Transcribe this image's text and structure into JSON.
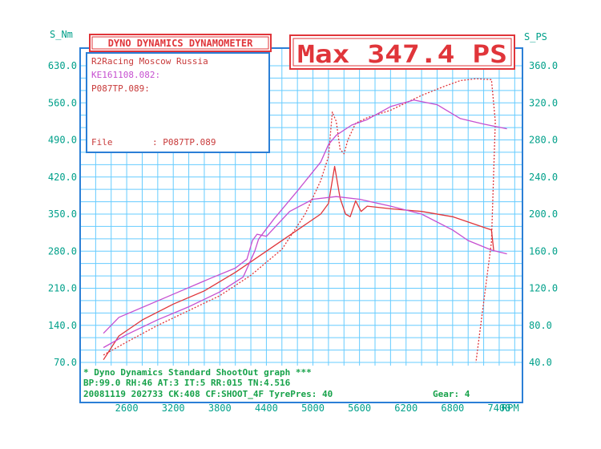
{
  "header": {
    "title": "DYNO DYNAMICS DYNAMOMETER",
    "max_label": "Max 347.4 PS"
  },
  "info_box": {
    "line1": "R2Racing Moscow Russia",
    "line2": "KE161108.082:",
    "line3": "P087TP.089:",
    "file_label": "File",
    "file_value": ": P087TP.089"
  },
  "footer": {
    "line1": "* Dyno Dynamics Standard ShootOut graph ***",
    "line2": "BP:99.0  RH:46 AT:3  IT:5     RR:015 TN:4.516",
    "line3_left": "20081119 202733 CK:408 CF:SHOOT_4F TyrePres: 40",
    "line3_right": "Gear: 4"
  },
  "colors": {
    "grid": "#66ccff",
    "axis_text": "#00a08a",
    "run1": "#e0353a",
    "run2": "#c64fd0",
    "header_red": "#e0353a",
    "box_blue": "#2b7fd6"
  },
  "chart_data": {
    "type": "line",
    "xlabel": "RPM",
    "ylabel_left": "S_Nm",
    "ylabel_right": "S_PS",
    "xlim": [
      2000,
      7700
    ],
    "ylim_left": [
      70,
      630
    ],
    "ylim_right": [
      40,
      360
    ],
    "x_ticks": [
      2600,
      3200,
      3800,
      4400,
      5000,
      5600,
      6200,
      6800,
      7400
    ],
    "x_tick_labels": [
      "2600",
      "3200",
      "3800",
      "4400",
      "5000",
      "5600",
      "6200",
      "6800",
      "7400"
    ],
    "y_left_ticks": [
      70,
      140,
      210,
      280,
      350,
      420,
      490,
      560,
      630
    ],
    "y_left_tick_labels": [
      "70.0",
      "140.0",
      "210.0",
      "280.0",
      "350.0",
      "420.0",
      "490.0",
      "560.0",
      "630.0"
    ],
    "y_right_ticks": [
      40,
      80,
      120,
      160,
      200,
      240,
      280,
      320,
      360
    ],
    "y_right_tick_labels": [
      "40.0",
      "80.0",
      "120.0",
      "160.0",
      "200.0",
      "240.0",
      "280.0",
      "320.0",
      "360.0"
    ],
    "grid": true,
    "series": [
      {
        "axis": "left",
        "style": "solid",
        "color": "#e0353a",
        "points": [
          [
            2300,
            75
          ],
          [
            2500,
            120
          ],
          [
            2800,
            150
          ],
          [
            3200,
            180
          ],
          [
            3600,
            205
          ],
          [
            4000,
            240
          ],
          [
            4400,
            280
          ],
          [
            4800,
            320
          ],
          [
            5100,
            350
          ],
          [
            5200,
            370
          ],
          [
            5280,
            440
          ],
          [
            5350,
            380
          ],
          [
            5420,
            350
          ],
          [
            5480,
            345
          ],
          [
            5550,
            375
          ],
          [
            5620,
            355
          ],
          [
            5700,
            365
          ],
          [
            6000,
            360
          ],
          [
            6400,
            355
          ],
          [
            6800,
            345
          ],
          [
            7000,
            335
          ],
          [
            7200,
            325
          ],
          [
            7300,
            320
          ],
          [
            7330,
            280
          ]
        ]
      },
      {
        "axis": "left",
        "style": "solid",
        "color": "#c64fd0",
        "points": [
          [
            2300,
            125
          ],
          [
            2500,
            155
          ],
          [
            2900,
            180
          ],
          [
            3300,
            205
          ],
          [
            3700,
            230
          ],
          [
            4000,
            248
          ],
          [
            4150,
            265
          ],
          [
            4220,
            300
          ],
          [
            4280,
            312
          ],
          [
            4400,
            308
          ],
          [
            4700,
            355
          ],
          [
            5000,
            378
          ],
          [
            5300,
            383
          ],
          [
            5600,
            378
          ],
          [
            6000,
            365
          ],
          [
            6400,
            350
          ],
          [
            6800,
            320
          ],
          [
            7000,
            300
          ],
          [
            7300,
            282
          ],
          [
            7500,
            275
          ]
        ]
      },
      {
        "axis": "right",
        "style": "dashed",
        "color": "#e0353a",
        "points": [
          [
            2300,
            48
          ],
          [
            2600,
            62
          ],
          [
            3000,
            80
          ],
          [
            3400,
            96
          ],
          [
            3800,
            112
          ],
          [
            4200,
            134
          ],
          [
            4600,
            162
          ],
          [
            4900,
            200
          ],
          [
            5100,
            236
          ],
          [
            5200,
            262
          ],
          [
            5250,
            310
          ],
          [
            5300,
            300
          ],
          [
            5350,
            270
          ],
          [
            5400,
            265
          ],
          [
            5450,
            280
          ],
          [
            5550,
            298
          ],
          [
            5700,
            304
          ],
          [
            6000,
            312
          ],
          [
            6400,
            328
          ],
          [
            6700,
            338
          ],
          [
            6900,
            344
          ],
          [
            7100,
            346
          ],
          [
            7300,
            345
          ],
          [
            7350,
            300
          ],
          [
            7300,
            170
          ],
          [
            7100,
            40
          ]
        ]
      },
      {
        "axis": "right",
        "style": "solid",
        "color": "#c64fd0",
        "points": [
          [
            2300,
            56
          ],
          [
            2600,
            70
          ],
          [
            3000,
            86
          ],
          [
            3400,
            100
          ],
          [
            3800,
            116
          ],
          [
            4100,
            132
          ],
          [
            4250,
            160
          ],
          [
            4300,
            173
          ],
          [
            4500,
            195
          ],
          [
            4800,
            225
          ],
          [
            5100,
            256
          ],
          [
            5200,
            275
          ],
          [
            5300,
            285
          ],
          [
            5500,
            296
          ],
          [
            5700,
            302
          ],
          [
            6000,
            316
          ],
          [
            6300,
            323
          ],
          [
            6600,
            318
          ],
          [
            6900,
            303
          ],
          [
            7200,
            297
          ],
          [
            7500,
            292
          ]
        ]
      }
    ]
  }
}
